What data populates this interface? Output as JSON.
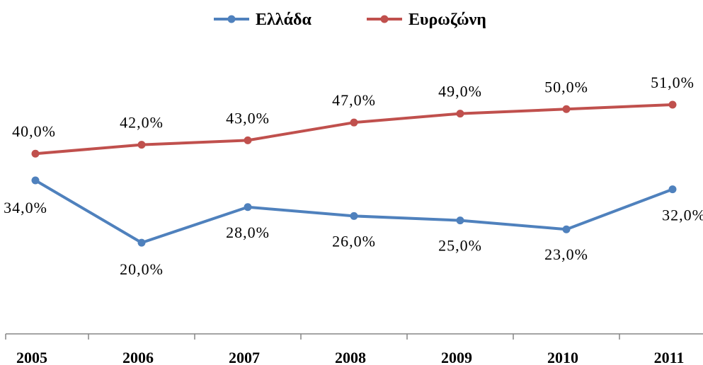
{
  "chart_data": {
    "type": "line",
    "title": "",
    "xlabel": "",
    "ylabel": "",
    "categories": [
      "2005",
      "2006",
      "2007",
      "2008",
      "2009",
      "2010",
      "2011"
    ],
    "ylim": [
      10,
      55
    ],
    "grid": false,
    "legend": "top",
    "series": [
      {
        "name": "Ελλάδα",
        "color": "#4f81bd",
        "values": [
          34,
          20,
          28,
          26,
          25,
          23,
          32
        ],
        "labels": [
          "34,0%",
          "20,0%",
          "28,0%",
          "26,0%",
          "25,0%",
          "23,0%",
          "32,0%"
        ]
      },
      {
        "name": "Ευρωζώνη",
        "color": "#c0504d",
        "values": [
          40,
          42,
          43,
          47,
          49,
          50,
          51
        ],
        "labels": [
          "40,0%",
          "42,0%",
          "43,0%",
          "47,0%",
          "49,0%",
          "50,0%",
          "51,0%"
        ]
      }
    ]
  }
}
